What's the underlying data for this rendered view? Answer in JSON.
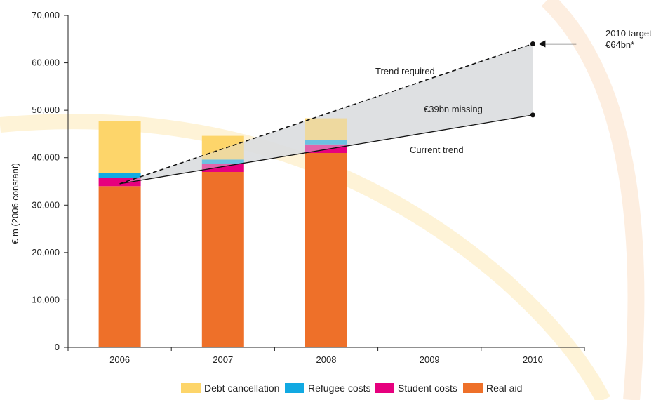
{
  "chart_data": {
    "type": "bar",
    "stacked": true,
    "categories": [
      "2006",
      "2007",
      "2008",
      "2009",
      "2010"
    ],
    "ylabel": "€ m (2006 constant)",
    "ylim": [
      0,
      70000
    ],
    "yticks": [
      0,
      10000,
      20000,
      30000,
      40000,
      50000,
      60000,
      70000
    ],
    "ytick_labels": [
      "0",
      "10,000",
      "20,000",
      "30,000",
      "40,000",
      "50,000",
      "60,000",
      "70,000"
    ],
    "series": [
      {
        "name": "Real aid",
        "color": "#ee7029",
        "values": [
          34000,
          37000,
          41000,
          null,
          null
        ]
      },
      {
        "name": "Student costs",
        "color": "#e6007e",
        "values": [
          1800,
          1700,
          1800,
          null,
          null
        ]
      },
      {
        "name": "Refugee costs",
        "color": "#11a9e2",
        "values": [
          900,
          900,
          900,
          null,
          null
        ]
      },
      {
        "name": "Debt cancellation",
        "color": "#fdd56a",
        "values": [
          11000,
          5000,
          4600,
          null,
          null
        ]
      }
    ],
    "legend": {
      "placement": "bottom",
      "order": [
        "Debt cancellation",
        "Refugee costs",
        "Student costs",
        "Real aid"
      ]
    },
    "trend_lines": {
      "required": {
        "label": "Trend required",
        "style": "dashed",
        "from": {
          "x": "2006",
          "y": 34500
        },
        "to": {
          "x": "2010",
          "y": 64000
        }
      },
      "current": {
        "label": "Current trend",
        "style": "solid",
        "from": {
          "x": "2006",
          "y": 34500
        },
        "to": {
          "x": "2010",
          "y": 49000
        }
      }
    },
    "gap": {
      "label": "€39bn missing",
      "fill": "#dcdddf"
    },
    "target": {
      "line1": "2010 target",
      "line2": "€64bn*",
      "x": "2010",
      "y": 64000
    },
    "grid": false
  }
}
